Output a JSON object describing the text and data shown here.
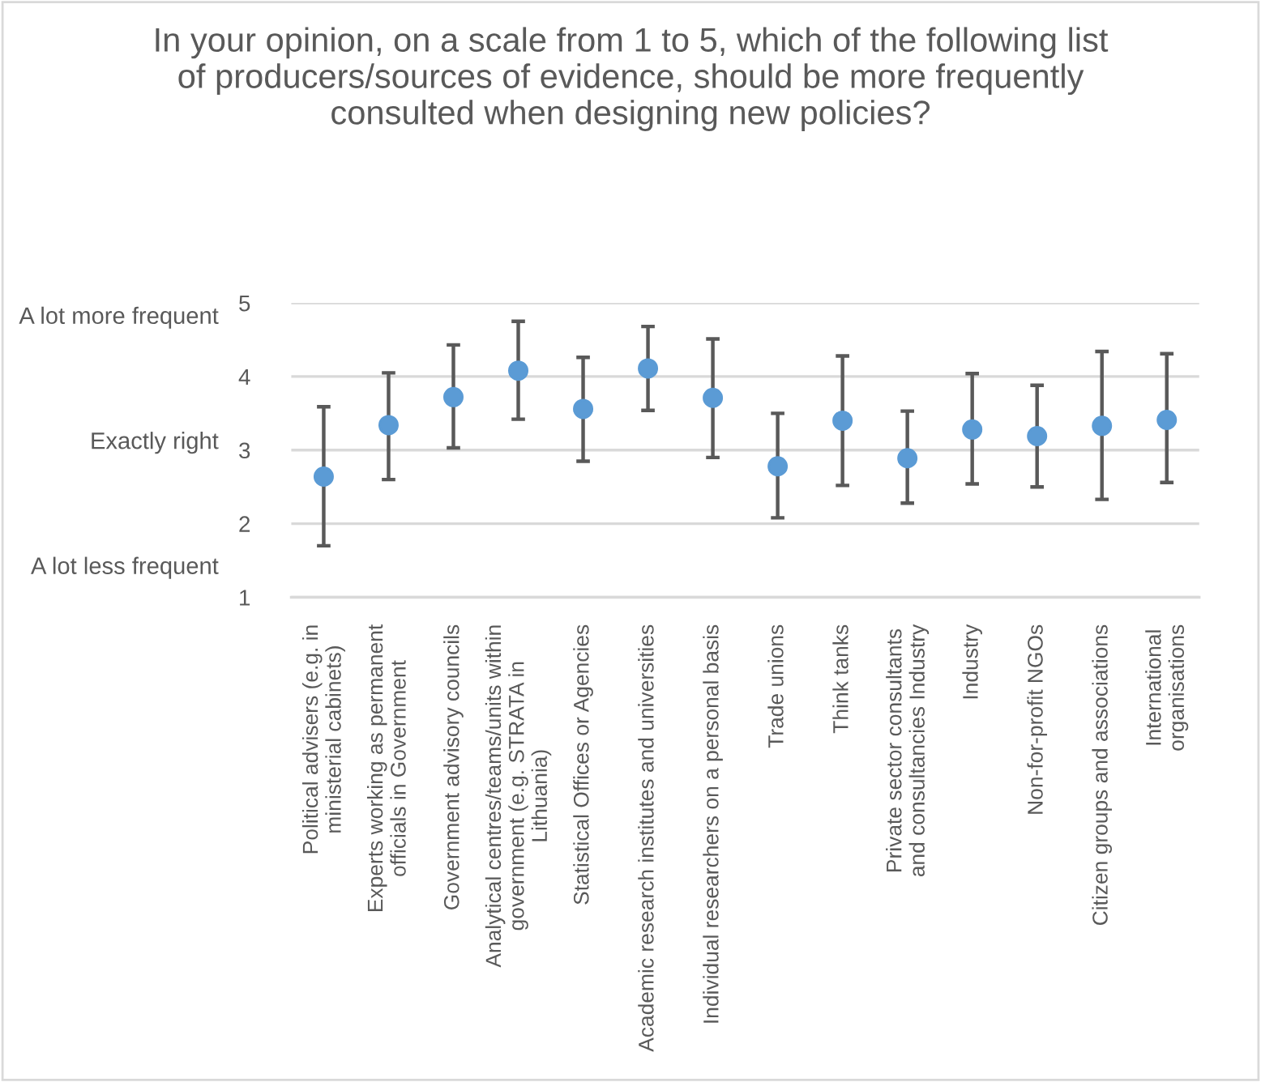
{
  "chart_data": {
    "type": "scatter",
    "title": "In your opinion, on a scale from 1 to 5, which of the following list\nof producers/sources of evidence, should be more frequently\nconsulted when designing new policies?",
    "categories": [
      "Political advisers (e.g. in\nministerial cabinets)",
      "Experts working as permanent\nofficials in Government",
      "Government advisory councils",
      "Analytical centres/teams/units within\ngovernment (e.g. STRATA in\nLithuania)",
      "Statistical Offices or Agencies",
      "Academic research institutes and universities",
      "Individual researchers on a personal basis",
      "Trade unions",
      "Think tanks",
      "Private sector consultants\nand consultancies Industry",
      "Industry",
      "Non-for-profit NGOs",
      "Citizen groups and associations",
      "International\norganisations"
    ],
    "values": [
      2.64,
      3.34,
      3.72,
      4.08,
      3.56,
      4.11,
      3.71,
      2.78,
      3.4,
      2.89,
      3.28,
      3.19,
      3.33,
      3.41
    ],
    "errors": [
      [
        1.7,
        3.59
      ],
      [
        2.6,
        4.05
      ],
      [
        3.03,
        4.43
      ],
      [
        3.42,
        4.75
      ],
      [
        2.85,
        4.26
      ],
      [
        3.54,
        4.68
      ],
      [
        2.9,
        4.51
      ],
      [
        2.08,
        3.5
      ],
      [
        2.52,
        4.28
      ],
      [
        2.28,
        3.53
      ],
      [
        2.54,
        4.04
      ],
      [
        2.5,
        3.88
      ],
      [
        2.33,
        4.34
      ],
      [
        2.56,
        4.31
      ]
    ],
    "color": "#5b9bd5",
    "marker": "circle",
    "ylim": [
      1,
      5
    ],
    "yticks": [
      1,
      2,
      3,
      4,
      5
    ],
    "grid": "y",
    "annotations": [
      "A lot more frequent",
      "Exactly right",
      "A lot less frequent"
    ]
  }
}
